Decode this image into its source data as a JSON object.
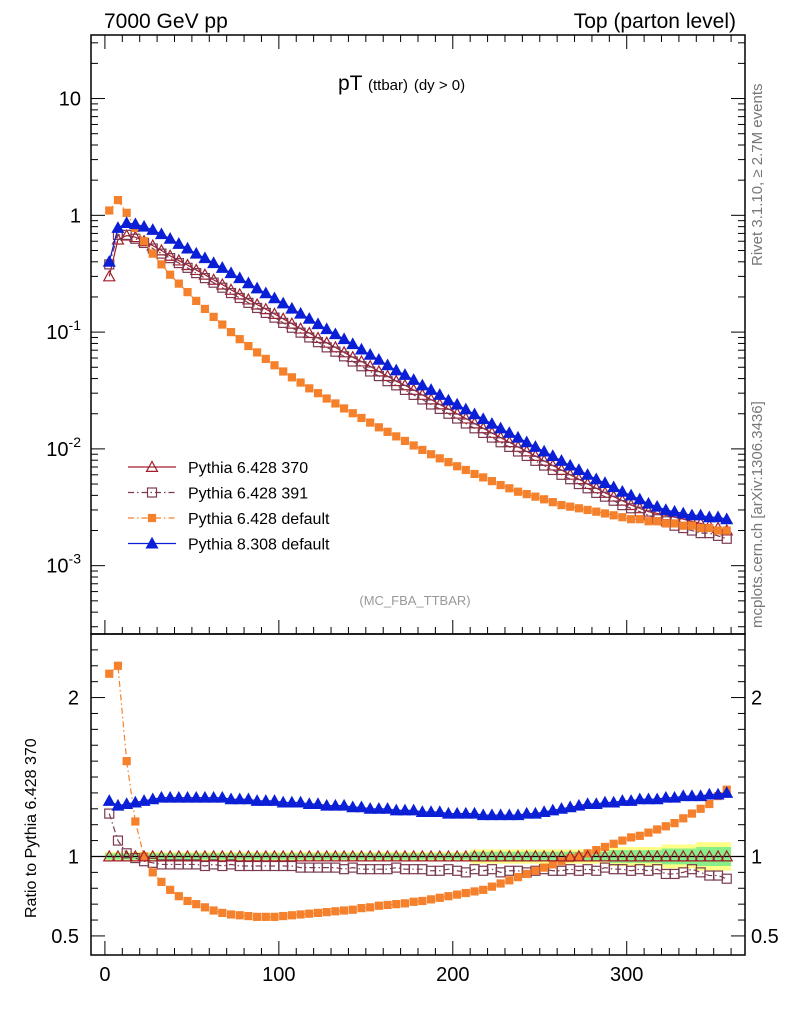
{
  "header": {
    "left": "7000 GeV pp",
    "right": "Top (parton level)",
    "title_main": "pT",
    "title_sub": "(ttbar)",
    "title_cut": "(dy > 0)",
    "analysis": "(MC_FBA_TTBAR)",
    "side_rivet": "Rivet 3.1.10, ≥ 2.7M events",
    "side_mcplots": "mcplots.cern.ch [arXiv:1306.3436]"
  },
  "chart_data": [
    {
      "type": "line",
      "yscale": "log",
      "xlim": [
        -8,
        368
      ],
      "ylim": [
        0.00026,
        35
      ],
      "ytick_labels": [
        "10^-3",
        "10^-2",
        "10^-1",
        "1",
        "10"
      ],
      "x": [
        2.5,
        7.5,
        12.5,
        17.5,
        22.5,
        27.5,
        32.5,
        37.5,
        42.5,
        47.5,
        52.5,
        57.5,
        62.5,
        67.5,
        72.5,
        77.5,
        82.5,
        87.5,
        92.5,
        97.5,
        102.5,
        107.5,
        112.5,
        117.5,
        122.5,
        127.5,
        132.5,
        137.5,
        142.5,
        147.5,
        152.5,
        157.5,
        162.5,
        167.5,
        172.5,
        177.5,
        182.5,
        187.5,
        192.5,
        197.5,
        202.5,
        207.5,
        212.5,
        217.5,
        222.5,
        227.5,
        232.5,
        237.5,
        242.5,
        247.5,
        252.5,
        257.5,
        262.5,
        267.5,
        272.5,
        277.5,
        282.5,
        287.5,
        292.5,
        297.5,
        302.5,
        307.5,
        312.5,
        317.5,
        322.5,
        327.5,
        332.5,
        337.5,
        342.5,
        347.5,
        352.5,
        357.5
      ],
      "series": [
        {
          "name": "Pythia 6.428 370",
          "color": "#a01e2e",
          "marker": "triangle-open",
          "linestyle": "solid",
          "values": [
            0.3,
            0.62,
            0.67,
            0.65,
            0.6,
            0.55,
            0.5,
            0.45,
            0.41,
            0.375,
            0.34,
            0.31,
            0.28,
            0.255,
            0.23,
            0.21,
            0.19,
            0.172,
            0.157,
            0.143,
            0.13,
            0.118,
            0.107,
            0.098,
            0.089,
            0.081,
            0.074,
            0.067,
            0.061,
            0.056,
            0.051,
            0.046,
            0.042,
            0.038,
            0.035,
            0.032,
            0.029,
            0.0265,
            0.024,
            0.022,
            0.02,
            0.0182,
            0.0165,
            0.015,
            0.0137,
            0.0125,
            0.0114,
            0.0104,
            0.0095,
            0.0087,
            0.0079,
            0.0072,
            0.0066,
            0.006,
            0.0055,
            0.005,
            0.0046,
            0.0042,
            0.0039,
            0.0036,
            0.0033,
            0.0031,
            0.0029,
            0.0028,
            0.0027,
            0.0026,
            0.0025,
            0.0024,
            0.0023,
            0.0022,
            0.0021,
            0.002
          ]
        },
        {
          "name": "Pythia 6.428 391",
          "color": "#7a3b52",
          "marker": "square-open",
          "linestyle": "dashdot",
          "values": [
            0.38,
            0.68,
            0.68,
            0.63,
            0.58,
            0.52,
            0.47,
            0.43,
            0.39,
            0.355,
            0.32,
            0.29,
            0.265,
            0.24,
            0.216,
            0.196,
            0.178,
            0.161,
            0.146,
            0.133,
            0.12,
            0.109,
            0.099,
            0.09,
            0.082,
            0.074,
            0.068,
            0.062,
            0.056,
            0.051,
            0.046,
            0.042,
            0.038,
            0.035,
            0.032,
            0.029,
            0.0265,
            0.024,
            0.022,
            0.02,
            0.0182,
            0.0165,
            0.015,
            0.0137,
            0.0125,
            0.0114,
            0.0104,
            0.0095,
            0.0087,
            0.0079,
            0.0072,
            0.0066,
            0.006,
            0.0055,
            0.005,
            0.0046,
            0.0042,
            0.0039,
            0.0036,
            0.0033,
            0.0031,
            0.0029,
            0.0027,
            0.0025,
            0.0024,
            0.0022,
            0.0021,
            0.002,
            0.0019,
            0.0019,
            0.0018,
            0.0017
          ]
        },
        {
          "name": "Pythia 6.428 default",
          "color": "#f5812c",
          "marker": "square-filled",
          "linestyle": "dashdot",
          "values": [
            1.1,
            1.35,
            1.05,
            0.78,
            0.6,
            0.47,
            0.38,
            0.31,
            0.26,
            0.22,
            0.185,
            0.158,
            0.135,
            0.116,
            0.1,
            0.087,
            0.076,
            0.067,
            0.059,
            0.052,
            0.046,
            0.041,
            0.037,
            0.033,
            0.03,
            0.027,
            0.0245,
            0.0222,
            0.0202,
            0.0184,
            0.0168,
            0.0153,
            0.014,
            0.0128,
            0.0117,
            0.0107,
            0.0098,
            0.009,
            0.0083,
            0.0077,
            0.0071,
            0.0066,
            0.0061,
            0.0057,
            0.0053,
            0.0049,
            0.0046,
            0.0043,
            0.0041,
            0.0039,
            0.0037,
            0.0035,
            0.0033,
            0.0032,
            0.0031,
            0.003,
            0.0029,
            0.0028,
            0.0027,
            0.0026,
            0.0025,
            0.0025,
            0.0024,
            0.0024,
            0.0023,
            0.0023,
            0.0022,
            0.0022,
            0.0021,
            0.0021,
            0.002,
            0.002
          ]
        },
        {
          "name": "Pythia 8.308 default",
          "color": "#0b1fd6",
          "marker": "triangle-filled",
          "linestyle": "solid",
          "values": [
            0.4,
            0.78,
            0.86,
            0.84,
            0.8,
            0.75,
            0.69,
            0.63,
            0.57,
            0.52,
            0.47,
            0.43,
            0.39,
            0.355,
            0.32,
            0.29,
            0.262,
            0.237,
            0.215,
            0.195,
            0.176,
            0.159,
            0.144,
            0.13,
            0.117,
            0.106,
            0.096,
            0.087,
            0.079,
            0.071,
            0.064,
            0.058,
            0.052,
            0.047,
            0.043,
            0.039,
            0.035,
            0.032,
            0.029,
            0.026,
            0.024,
            0.0218,
            0.0198,
            0.018,
            0.0164,
            0.015,
            0.0137,
            0.0125,
            0.0114,
            0.0104,
            0.0095,
            0.0087,
            0.0079,
            0.0072,
            0.0066,
            0.006,
            0.0055,
            0.0051,
            0.0047,
            0.0043,
            0.004,
            0.0037,
            0.0034,
            0.0032,
            0.003,
            0.0029,
            0.0028,
            0.0027,
            0.0027,
            0.0026,
            0.0026,
            0.0025
          ]
        }
      ]
    },
    {
      "type": "line",
      "ylabel": "Ratio to Pythia 6.428 370",
      "xlim": [
        -8,
        368
      ],
      "ylim": [
        0.38,
        2.4
      ],
      "xticks": [
        0,
        100,
        200,
        300
      ],
      "yticks": [
        0.5,
        1,
        2
      ],
      "band_green_halfwidth": [
        0.01,
        0.01,
        0.01,
        0.01,
        0.01,
        0.01,
        0.01,
        0.01,
        0.01,
        0.01,
        0.01,
        0.01,
        0.01,
        0.01,
        0.01,
        0.01,
        0.01,
        0.01,
        0.01,
        0.01,
        0.01,
        0.01,
        0.01,
        0.01,
        0.01,
        0.01,
        0.01,
        0.01,
        0.01,
        0.01,
        0.01,
        0.01,
        0.01,
        0.01,
        0.01,
        0.01,
        0.01,
        0.01,
        0.01,
        0.01,
        0.01,
        0.01,
        0.015,
        0.015,
        0.015,
        0.015,
        0.015,
        0.015,
        0.015,
        0.015,
        0.015,
        0.015,
        0.015,
        0.015,
        0.015,
        0.015,
        0.015,
        0.015,
        0.02,
        0.02,
        0.02,
        0.02,
        0.02,
        0.02,
        0.025,
        0.025,
        0.025,
        0.025,
        0.03,
        0.03,
        0.03,
        0.03
      ],
      "band_yellow_halfwidth": [
        0.01,
        0.01,
        0.01,
        0.01,
        0.01,
        0.01,
        0.01,
        0.01,
        0.01,
        0.01,
        0.01,
        0.01,
        0.01,
        0.01,
        0.01,
        0.01,
        0.01,
        0.01,
        0.01,
        0.01,
        0.01,
        0.01,
        0.01,
        0.01,
        0.01,
        0.01,
        0.01,
        0.01,
        0.01,
        0.01,
        0.01,
        0.01,
        0.01,
        0.01,
        0.01,
        0.01,
        0.01,
        0.01,
        0.01,
        0.01,
        0.01,
        0.01,
        0.015,
        0.015,
        0.015,
        0.015,
        0.015,
        0.015,
        0.015,
        0.015,
        0.015,
        0.015,
        0.015,
        0.015,
        0.015,
        0.015,
        0.015,
        0.015,
        0.02,
        0.02,
        0.02,
        0.02,
        0.02,
        0.02,
        0.025,
        0.025,
        0.025,
        0.025,
        0.03,
        0.03,
        0.03,
        0.03
      ],
      "series": [
        {
          "name": "Pythia 6.428 391",
          "color": "#7a3b52",
          "marker": "square-open",
          "linestyle": "dashdot",
          "values": [
            1.27,
            1.1,
            1.02,
            0.99,
            0.97,
            0.96,
            0.95,
            0.95,
            0.95,
            0.95,
            0.95,
            0.94,
            0.95,
            0.94,
            0.95,
            0.94,
            0.94,
            0.94,
            0.94,
            0.94,
            0.94,
            0.94,
            0.93,
            0.93,
            0.93,
            0.93,
            0.93,
            0.92,
            0.93,
            0.92,
            0.92,
            0.92,
            0.92,
            0.93,
            0.92,
            0.92,
            0.92,
            0.91,
            0.91,
            0.92,
            0.91,
            0.9,
            0.92,
            0.91,
            0.92,
            0.9,
            0.91,
            0.91,
            0.9,
            0.91,
            0.92,
            0.91,
            0.91,
            0.92,
            0.91,
            0.92,
            0.91,
            0.93,
            0.92,
            0.92,
            0.91,
            0.92,
            0.91,
            0.92,
            0.89,
            0.89,
            0.9,
            0.92,
            0.9,
            0.88,
            0.88,
            0.86
          ]
        },
        {
          "name": "Pythia 6.428 default",
          "color": "#f5812c",
          "marker": "square-filled",
          "linestyle": "dashdot",
          "values": [
            2.15,
            2.2,
            1.6,
            1.22,
            1.0,
            0.9,
            0.84,
            0.79,
            0.75,
            0.72,
            0.7,
            0.68,
            0.66,
            0.645,
            0.635,
            0.63,
            0.625,
            0.62,
            0.62,
            0.62,
            0.625,
            0.63,
            0.635,
            0.64,
            0.645,
            0.65,
            0.655,
            0.66,
            0.665,
            0.675,
            0.68,
            0.69,
            0.695,
            0.7,
            0.705,
            0.715,
            0.72,
            0.73,
            0.74,
            0.75,
            0.76,
            0.77,
            0.78,
            0.79,
            0.81,
            0.83,
            0.85,
            0.87,
            0.89,
            0.91,
            0.93,
            0.95,
            0.97,
            0.99,
            1.0,
            1.02,
            1.04,
            1.06,
            1.08,
            1.1,
            1.12,
            1.13,
            1.15,
            1.17,
            1.19,
            1.21,
            1.24,
            1.27,
            1.3,
            1.33,
            1.38,
            1.42
          ]
        },
        {
          "name": "Pythia 8.308 default",
          "color": "#0b1fd6",
          "marker": "triangle-filled",
          "linestyle": "solid",
          "values": [
            1.35,
            1.32,
            1.33,
            1.34,
            1.35,
            1.36,
            1.37,
            1.37,
            1.37,
            1.37,
            1.37,
            1.37,
            1.37,
            1.37,
            1.36,
            1.36,
            1.36,
            1.35,
            1.35,
            1.35,
            1.34,
            1.34,
            1.34,
            1.33,
            1.33,
            1.32,
            1.32,
            1.32,
            1.31,
            1.31,
            1.3,
            1.3,
            1.3,
            1.29,
            1.29,
            1.29,
            1.28,
            1.28,
            1.28,
            1.27,
            1.27,
            1.27,
            1.27,
            1.26,
            1.26,
            1.26,
            1.26,
            1.26,
            1.27,
            1.27,
            1.28,
            1.29,
            1.3,
            1.31,
            1.32,
            1.33,
            1.33,
            1.34,
            1.34,
            1.35,
            1.35,
            1.36,
            1.36,
            1.36,
            1.37,
            1.37,
            1.38,
            1.38,
            1.38,
            1.39,
            1.39,
            1.4
          ]
        }
      ]
    }
  ]
}
